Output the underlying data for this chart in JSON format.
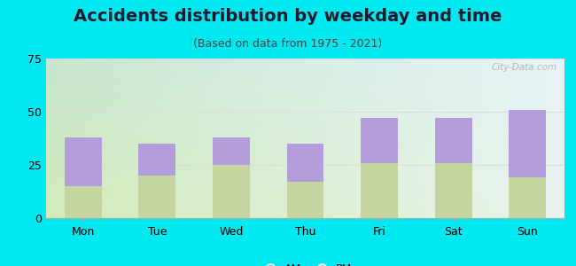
{
  "title": "Accidents distribution by weekday and time",
  "subtitle": "(Based on data from 1975 - 2021)",
  "categories": [
    "Mon",
    "Tue",
    "Wed",
    "Thu",
    "Fri",
    "Sat",
    "Sun"
  ],
  "pm_values": [
    15,
    20,
    25,
    17,
    26,
    26,
    19
  ],
  "am_values": [
    23,
    15,
    13,
    18,
    21,
    21,
    32
  ],
  "am_color": "#b39ddb",
  "pm_color": "#c5d5a0",
  "bg_color": "#00e8f0",
  "ylim": [
    0,
    75
  ],
  "yticks": [
    0,
    25,
    50,
    75
  ],
  "bar_width": 0.5,
  "title_fontsize": 14,
  "subtitle_fontsize": 9,
  "tick_fontsize": 9,
  "legend_fontsize": 9,
  "watermark": "City-Data.com",
  "grid_color": "#dddddd"
}
